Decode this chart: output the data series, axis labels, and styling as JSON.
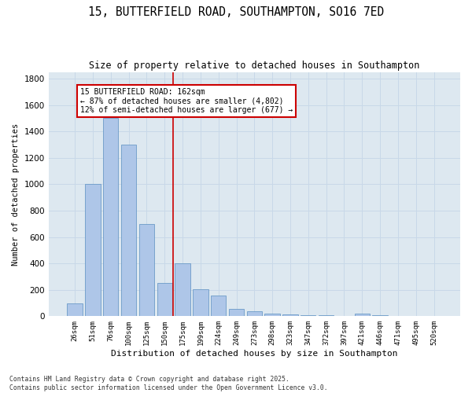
{
  "title_line1": "15, BUTTERFIELD ROAD, SOUTHAMPTON, SO16 7ED",
  "title_line2": "Size of property relative to detached houses in Southampton",
  "xlabel": "Distribution of detached houses by size in Southampton",
  "ylabel": "Number of detached properties",
  "categories": [
    "26sqm",
    "51sqm",
    "76sqm",
    "100sqm",
    "125sqm",
    "150sqm",
    "175sqm",
    "199sqm",
    "224sqm",
    "249sqm",
    "273sqm",
    "298sqm",
    "323sqm",
    "347sqm",
    "372sqm",
    "397sqm",
    "421sqm",
    "446sqm",
    "471sqm",
    "495sqm",
    "520sqm"
  ],
  "values": [
    100,
    1000,
    1500,
    1300,
    700,
    250,
    400,
    205,
    155,
    55,
    40,
    20,
    15,
    10,
    5,
    0,
    20,
    5,
    0,
    0,
    0
  ],
  "bar_color": "#aec6e8",
  "bar_edge_color": "#5a8fc0",
  "grid_color": "#c8d8e8",
  "background_color": "#dde8f0",
  "annotation_text": "15 BUTTERFIELD ROAD: 162sqm\n← 87% of detached houses are smaller (4,802)\n12% of semi-detached houses are larger (677) →",
  "annotation_box_color": "#ffffff",
  "annotation_border_color": "#cc0000",
  "ylim": [
    0,
    1850
  ],
  "yticks": [
    0,
    200,
    400,
    600,
    800,
    1000,
    1200,
    1400,
    1600,
    1800
  ],
  "footer_line1": "Contains HM Land Registry data © Crown copyright and database right 2025.",
  "footer_line2": "Contains public sector information licensed under the Open Government Licence v3.0."
}
